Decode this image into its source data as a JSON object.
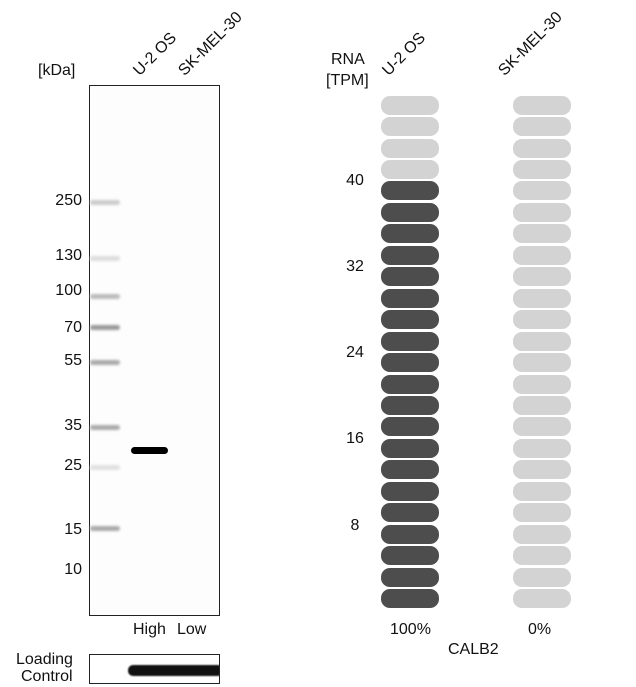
{
  "western_blot": {
    "unit_label": "[kDa]",
    "lanes": [
      "U-2 OS",
      "SK-MEL-30"
    ],
    "markers": [
      "250",
      "130",
      "100",
      "70",
      "55",
      "35",
      "25",
      "15",
      "10"
    ],
    "band_intensity_labels": [
      "High",
      "Low"
    ],
    "loading_control_label": [
      "Loading",
      "Control"
    ]
  },
  "chart_data": {
    "type": "bar",
    "ylabel": [
      "RNA",
      "[TPM]"
    ],
    "categories": [
      "U-2 OS",
      "SK-MEL-30"
    ],
    "values": [
      40,
      0
    ],
    "percent_labels": [
      "100%",
      "0%"
    ],
    "yticks": [
      "40",
      "32",
      "24",
      "16",
      "8"
    ],
    "ylim": [
      0,
      48
    ],
    "xlabel": "CALB2",
    "colors": {
      "filled": "#4d4d4d",
      "empty": "#d3d3d3"
    }
  }
}
